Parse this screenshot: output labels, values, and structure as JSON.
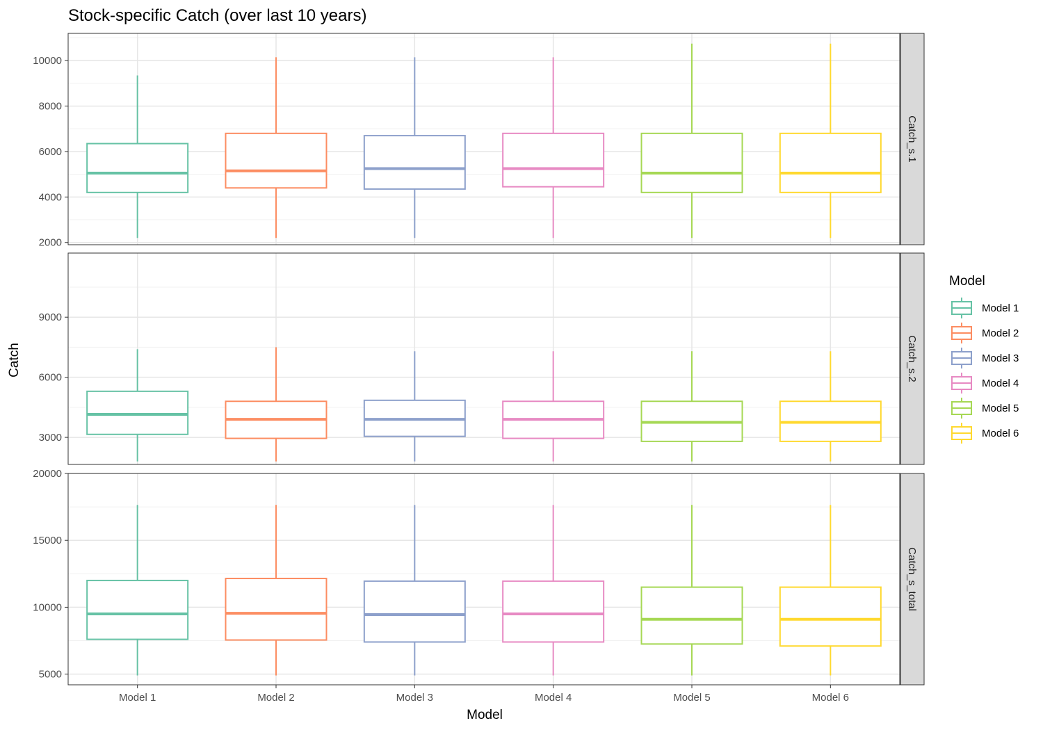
{
  "chart_data": {
    "type": "boxplot",
    "title": "Stock-specific Catch (over last 10 years)",
    "xlabel": "Model",
    "ylabel": "Catch",
    "categories": [
      "Model 1",
      "Model 2",
      "Model 3",
      "Model 4",
      "Model 5",
      "Model 6"
    ],
    "colors": [
      "#66c2a5",
      "#fc8d62",
      "#8da0cb",
      "#e78ac3",
      "#a6d854",
      "#ffd92f"
    ],
    "legend": {
      "title": "Model",
      "position": "right",
      "entries": [
        "Model 1",
        "Model 2",
        "Model 3",
        "Model 4",
        "Model 5",
        "Model 6"
      ]
    },
    "grid": true,
    "facets": [
      {
        "label": "Catch_s.1",
        "ylim": [
          1900,
          11200
        ],
        "yticks": [
          2000,
          4000,
          6000,
          8000,
          10000
        ],
        "ytick_labels": [
          "2000",
          "4000",
          "6000",
          "8000",
          "10000"
        ],
        "minor_yticks": [
          3000,
          5000,
          7000,
          9000,
          11000
        ],
        "boxes": [
          {
            "min": 2200,
            "q1": 4200,
            "median": 5050,
            "q3": 6350,
            "max": 9350
          },
          {
            "min": 2200,
            "q1": 4400,
            "median": 5150,
            "q3": 6800,
            "max": 10150
          },
          {
            "min": 2200,
            "q1": 4350,
            "median": 5250,
            "q3": 6700,
            "max": 10150
          },
          {
            "min": 2200,
            "q1": 4450,
            "median": 5250,
            "q3": 6800,
            "max": 10150
          },
          {
            "min": 2200,
            "q1": 4200,
            "median": 5050,
            "q3": 6800,
            "max": 10750
          },
          {
            "min": 2200,
            "q1": 4200,
            "median": 5050,
            "q3": 6800,
            "max": 10750
          }
        ]
      },
      {
        "label": "Catch_s.2",
        "ylim": [
          1650,
          12200
        ],
        "yticks": [
          3000,
          6000,
          9000
        ],
        "ytick_labels": [
          "3000",
          "6000",
          "9000"
        ],
        "minor_yticks": [
          4500,
          7500,
          10500
        ],
        "boxes": [
          {
            "min": 1800,
            "q1": 3150,
            "median": 4150,
            "q3": 5300,
            "max": 7400
          },
          {
            "min": 1800,
            "q1": 2950,
            "median": 3900,
            "q3": 4800,
            "max": 7500
          },
          {
            "min": 1800,
            "q1": 3050,
            "median": 3900,
            "q3": 4850,
            "max": 7300
          },
          {
            "min": 1800,
            "q1": 2950,
            "median": 3900,
            "q3": 4800,
            "max": 7300
          },
          {
            "min": 1800,
            "q1": 2800,
            "median": 3750,
            "q3": 4800,
            "max": 7300
          },
          {
            "min": 1800,
            "q1": 2800,
            "median": 3750,
            "q3": 4800,
            "max": 7300
          }
        ]
      },
      {
        "label": "Catch_s_total",
        "ylim": [
          4200,
          20000
        ],
        "yticks": [
          5000,
          10000,
          15000,
          20000
        ],
        "ytick_labels": [
          "5000",
          "10000",
          "15000",
          "20000"
        ],
        "minor_yticks": [
          7500,
          12500,
          17500
        ],
        "boxes": [
          {
            "min": 4900,
            "q1": 7600,
            "median": 9500,
            "q3": 12000,
            "max": 17650
          },
          {
            "min": 4900,
            "q1": 7550,
            "median": 9550,
            "q3": 12150,
            "max": 17650
          },
          {
            "min": 4900,
            "q1": 7400,
            "median": 9450,
            "q3": 11950,
            "max": 17650
          },
          {
            "min": 4900,
            "q1": 7400,
            "median": 9500,
            "q3": 11950,
            "max": 17650
          },
          {
            "min": 4900,
            "q1": 7250,
            "median": 9100,
            "q3": 11500,
            "max": 17650
          },
          {
            "min": 4900,
            "q1": 7100,
            "median": 9100,
            "q3": 11500,
            "max": 17650
          }
        ]
      }
    ]
  }
}
